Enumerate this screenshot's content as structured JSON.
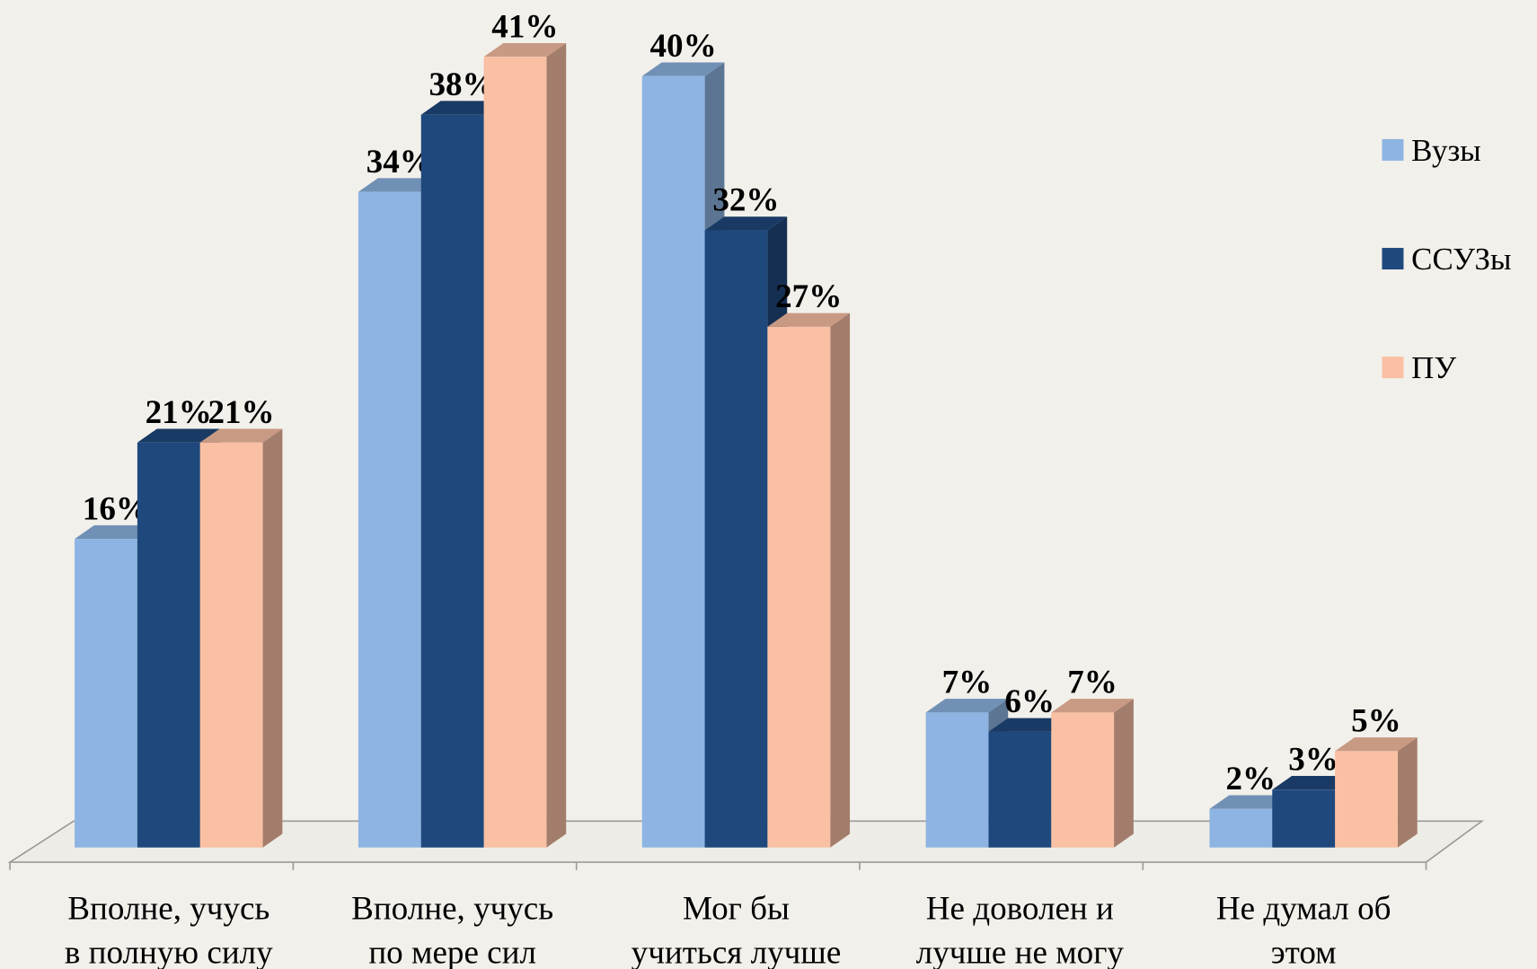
{
  "chart_data": {
    "type": "bar3d",
    "categories": [
      [
        "Вполне, учусь",
        "в полную силу"
      ],
      [
        "Вполне, учусь",
        "по мере сил"
      ],
      [
        "Мог бы",
        "учиться лучше"
      ],
      [
        "Не доволен и",
        "лучше не могу"
      ],
      [
        "Не думал об",
        "этом"
      ]
    ],
    "series": [
      {
        "name": "Вузы",
        "color": "#8db4e2",
        "values": [
          16,
          34,
          40,
          7,
          2
        ],
        "value_labels": [
          "16%",
          "34%",
          "40%",
          "7%",
          "2%"
        ]
      },
      {
        "name": "ССУЗы",
        "color": "#1f497d",
        "values": [
          21,
          38,
          32,
          6,
          3
        ],
        "value_labels": [
          "21%",
          "38%",
          "32%",
          "6%",
          "3%"
        ]
      },
      {
        "name": "ПУ",
        "color": "#fac0a4",
        "values": [
          21,
          41,
          27,
          7,
          5
        ],
        "value_labels": [
          "21%",
          "41%",
          "27%",
          "7%",
          "5%"
        ]
      }
    ],
    "legend": "right"
  }
}
